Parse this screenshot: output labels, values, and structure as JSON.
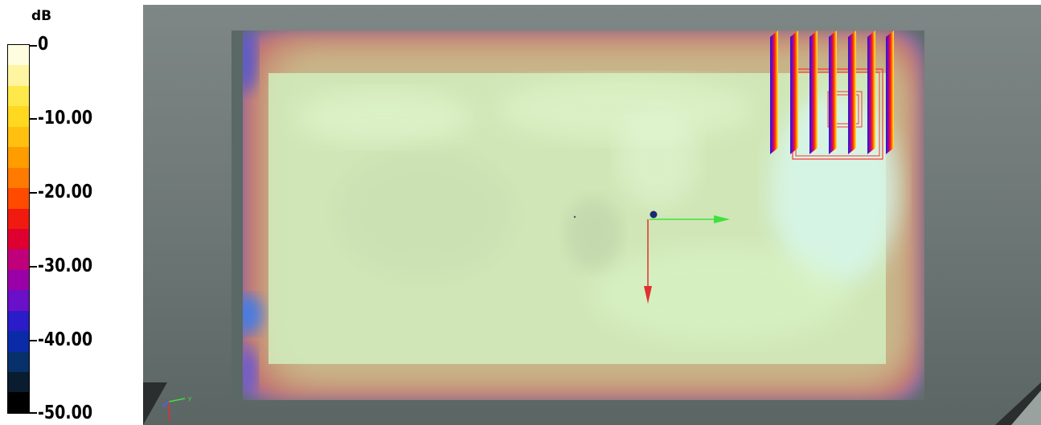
{
  "legend": {
    "unit": "dB",
    "ticks": [
      "0",
      "-10.00",
      "-20.00",
      "-30.00",
      "-40.00",
      "-50.00"
    ],
    "colors": [
      "#fffde0",
      "#fff5a0",
      "#ffe94a",
      "#ffd820",
      "#ffc010",
      "#ff9c00",
      "#ff7a00",
      "#ff4a00",
      "#f01a10",
      "#e00030",
      "#c0007a",
      "#9a00a8",
      "#6a10c8",
      "#2a1cc8",
      "#0a2aa8",
      "#08306a",
      "#0a1c30",
      "#000000"
    ]
  },
  "viewport": {
    "background": "#6e7876",
    "room_interior_color": "#d2f0c0",
    "axes": {
      "x_color": "#40e040",
      "y_color": "#e03030"
    }
  }
}
